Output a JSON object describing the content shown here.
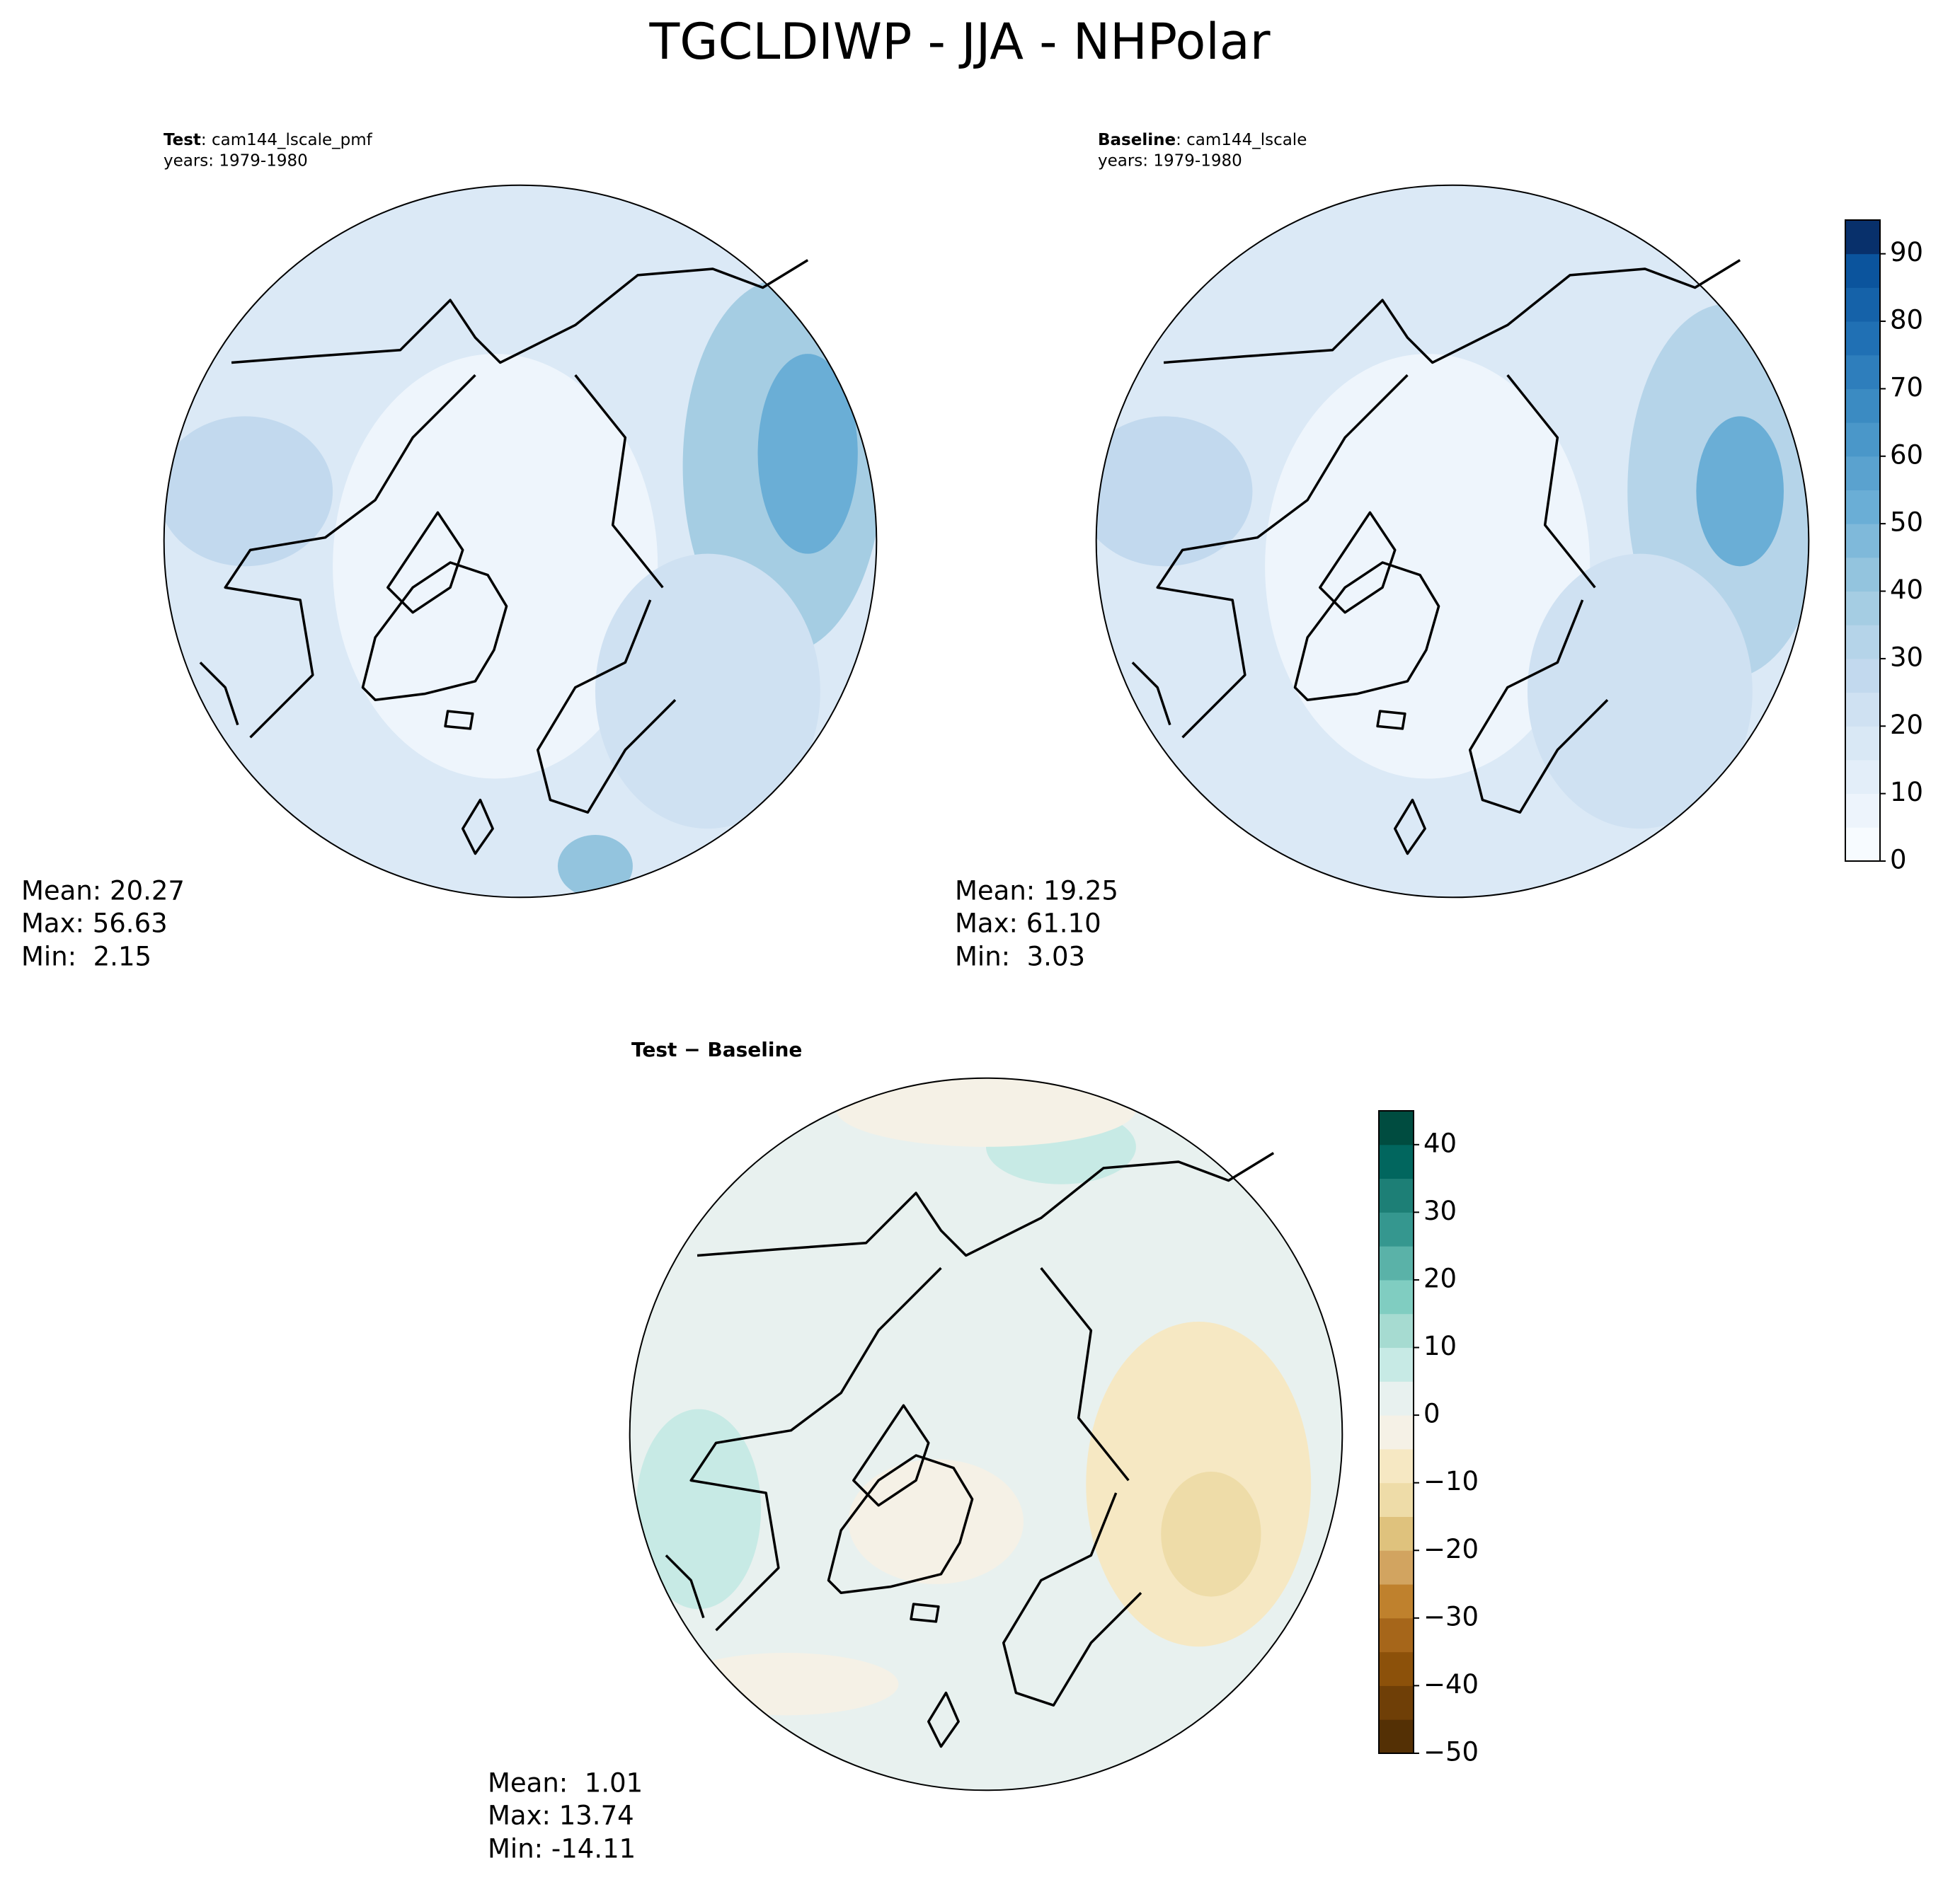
{
  "title": "TGCLDIWP - JJA - NHPolar",
  "panels": [
    {
      "label": "Test",
      "case": ": cam144_lscale_pmf",
      "years": "years: 1979-1980",
      "stats": [
        "Mean: 20.27",
        "Max: 56.63",
        "Min:  2.15"
      ]
    },
    {
      "label": "Baseline",
      "case": ": cam144_lscale",
      "years": "years: 1979-1980",
      "stats": [
        "Mean: 19.25",
        "Max: 61.10",
        "Min:  3.03"
      ]
    },
    {
      "title": "Test − Baseline",
      "stats": [
        "Mean:  1.01",
        "Max: 13.74",
        "Min: -14.11"
      ]
    }
  ],
  "colorbars": [
    {
      "lim": [
        0,
        95
      ],
      "ticks": [
        0,
        10,
        20,
        30,
        40,
        50,
        60,
        70,
        80,
        90
      ],
      "colors": [
        "#f7fbff",
        "#edf4fc",
        "#e3eef9",
        "#d9e8f5",
        "#cfe1f2",
        "#c2d9ee",
        "#b5d4e9",
        "#a5cde3",
        "#93c4de",
        "#7fb9da",
        "#6aaed6",
        "#5aa2cf",
        "#4a97c9",
        "#3b8bc2",
        "#2e7ebc",
        "#2070b4",
        "#1562a9",
        "#0b549d",
        "#08306b"
      ]
    },
    {
      "lim": [
        -50,
        45
      ],
      "ticks": [
        {
          "value": -50,
          "label": "−50"
        },
        {
          "value": -40,
          "label": "−40"
        },
        {
          "value": -30,
          "label": "−30"
        },
        {
          "value": -20,
          "label": "−20"
        },
        {
          "value": -10,
          "label": "−10"
        },
        0,
        10,
        20,
        30,
        40
      ],
      "colors": [
        "#543005",
        "#6f3f07",
        "#8c510a",
        "#a6661a",
        "#bf812d",
        "#d2a460",
        "#dfc27d",
        "#eedca8",
        "#f6e8c3",
        "#f5f1e6",
        "#e8f1ef",
        "#c7eae5",
        "#a6dbd1",
        "#80cdc1",
        "#5ab2a8",
        "#35978f",
        "#1d7f76",
        "#01665e",
        "#004c40"
      ]
    }
  ]
}
